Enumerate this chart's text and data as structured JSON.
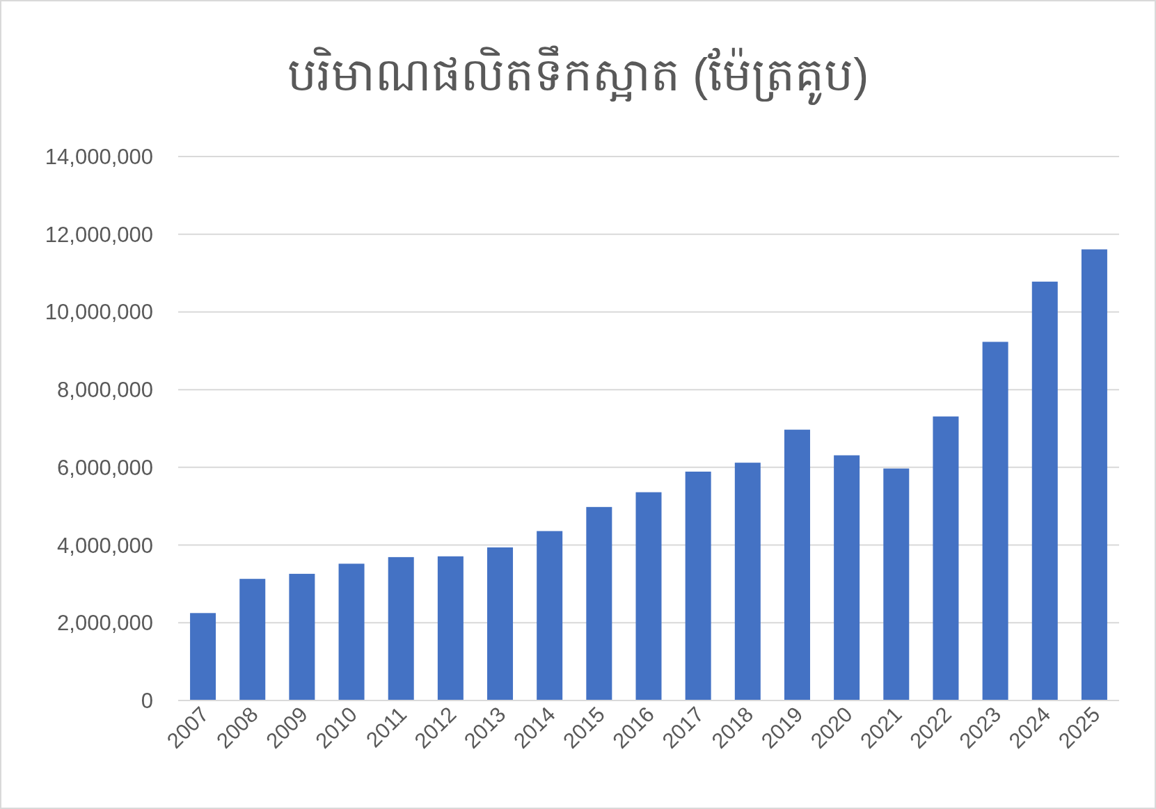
{
  "chart_data": {
    "type": "bar",
    "title": "បរិមាណផលិតទឹកស្អាត (ម៉ែត្រគូប)",
    "categories": [
      "2007",
      "2008",
      "2009",
      "2010",
      "2011",
      "2012",
      "2013",
      "2014",
      "2015",
      "2016",
      "2017",
      "2018",
      "2019",
      "2020",
      "2021",
      "2022",
      "2023",
      "2024",
      "2025"
    ],
    "values": [
      2250000,
      3130000,
      3260000,
      3520000,
      3690000,
      3710000,
      3940000,
      4360000,
      4980000,
      5360000,
      5890000,
      6120000,
      6970000,
      6310000,
      5970000,
      7310000,
      9230000,
      10780000,
      11610000
    ],
    "color": "#4472c4",
    "ylim": [
      0,
      14000000
    ],
    "yticks": [
      {
        "value": 0,
        "label": "0"
      },
      {
        "value": 2000000,
        "label": "2,000,000"
      },
      {
        "value": 4000000,
        "label": "4,000,000"
      },
      {
        "value": 6000000,
        "label": "6,000,000"
      },
      {
        "value": 8000000,
        "label": "8,000,000"
      },
      {
        "value": 10000000,
        "label": "10,000,000"
      },
      {
        "value": 12000000,
        "label": "12,000,000"
      },
      {
        "value": 14000000,
        "label": "14,000,000"
      }
    ],
    "grid": "y"
  }
}
